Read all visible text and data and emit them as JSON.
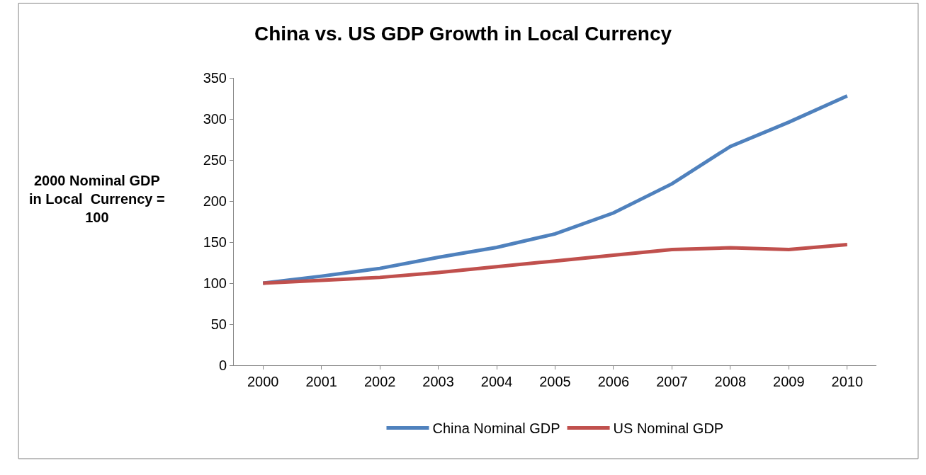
{
  "chart_data": {
    "type": "line",
    "title": "China vs. US GDP Growth in Local Currency",
    "ylabel": "2000 Nominal GDP\nin Local  Currency =\n100",
    "categories": [
      "2000",
      "2001",
      "2002",
      "2003",
      "2004",
      "2005",
      "2006",
      "2007",
      "2008",
      "2009",
      "2010"
    ],
    "series": [
      {
        "name": "China Nominal GDP",
        "color": "#4f81bd",
        "values": [
          100,
          108.5,
          118,
          131.5,
          143.5,
          160,
          185.5,
          221,
          266.5,
          296,
          328
        ]
      },
      {
        "name": "US Nominal GDP",
        "color": "#c0504d",
        "values": [
          100,
          103.5,
          107,
          113,
          120,
          127,
          134,
          141,
          143,
          141,
          147
        ]
      }
    ],
    "ylim": [
      0,
      350
    ],
    "yticks": [
      0,
      50,
      100,
      150,
      200,
      250,
      300,
      350
    ],
    "grid": false,
    "legend": "bottom",
    "marker": "none",
    "line_style": "solid"
  }
}
